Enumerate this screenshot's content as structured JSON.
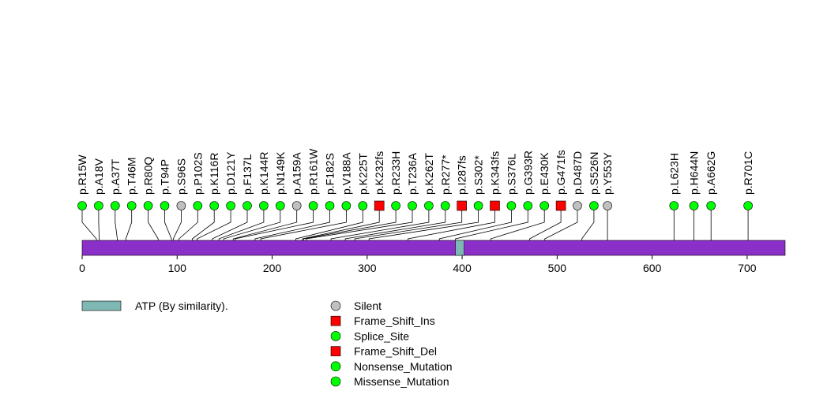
{
  "chart_data": {
    "type": "lollipop",
    "title": "",
    "protein_length": 740,
    "axis": {
      "min": 0,
      "max": 740,
      "ticks": [
        0,
        100,
        200,
        300,
        400,
        500,
        600,
        700
      ]
    },
    "domains": [
      {
        "label": "ATP (By similarity).",
        "start": 393,
        "end": 402,
        "color": "#7fb7b4"
      }
    ],
    "protein_color": "#8b2fc9",
    "categories": {
      "Silent": {
        "color": "#c0c0c0",
        "shape": "circle"
      },
      "Frame_Shift_Ins": {
        "color": "#ff0000",
        "shape": "square"
      },
      "Splice_Site": {
        "color": "#00ff00",
        "shape": "circle"
      },
      "Frame_Shift_Del": {
        "color": "#ff0000",
        "shape": "square"
      },
      "Nonsense_Mutation": {
        "color": "#00ff00",
        "shape": "circle"
      },
      "Missense_Mutation": {
        "color": "#00ff00",
        "shape": "circle"
      }
    },
    "legend": [
      "Silent",
      "Frame_Shift_Ins",
      "Splice_Site",
      "Frame_Shift_Del",
      "Nonsense_Mutation",
      "Missense_Mutation"
    ],
    "mutations": [
      {
        "label": "p.R15W",
        "position": 15,
        "category": "Missense_Mutation"
      },
      {
        "label": "p.A18V",
        "position": 18,
        "category": "Missense_Mutation"
      },
      {
        "label": "p.A37T",
        "position": 37,
        "category": "Missense_Mutation"
      },
      {
        "label": "p.T46M",
        "position": 46,
        "category": "Missense_Mutation"
      },
      {
        "label": "p.R80Q",
        "position": 80,
        "category": "Missense_Mutation"
      },
      {
        "label": "p.T94P",
        "position": 94,
        "category": "Missense_Mutation"
      },
      {
        "label": "p.S96S",
        "position": 96,
        "category": "Silent"
      },
      {
        "label": "p.P102S",
        "position": 102,
        "category": "Missense_Mutation"
      },
      {
        "label": "p.K116R",
        "position": 116,
        "category": "Missense_Mutation"
      },
      {
        "label": "p.D121Y",
        "position": 121,
        "category": "Missense_Mutation"
      },
      {
        "label": "p.F137L",
        "position": 137,
        "category": "Missense_Mutation"
      },
      {
        "label": "p.K144R",
        "position": 144,
        "category": "Missense_Mutation"
      },
      {
        "label": "p.N149K",
        "position": 149,
        "category": "Missense_Mutation"
      },
      {
        "label": "p.A159A",
        "position": 159,
        "category": "Silent"
      },
      {
        "label": "p.R161W",
        "position": 161,
        "category": "Missense_Mutation"
      },
      {
        "label": "p.F182S",
        "position": 182,
        "category": "Missense_Mutation"
      },
      {
        "label": "p.V188A",
        "position": 188,
        "category": "Missense_Mutation"
      },
      {
        "label": "p.K225T",
        "position": 225,
        "category": "Missense_Mutation"
      },
      {
        "label": "p.K232fs",
        "position": 232,
        "category": "Frame_Shift_Ins"
      },
      {
        "label": "p.R233H",
        "position": 233,
        "category": "Missense_Mutation"
      },
      {
        "label": "p.T236A",
        "position": 236,
        "category": "Missense_Mutation"
      },
      {
        "label": "p.K262T",
        "position": 262,
        "category": "Missense_Mutation"
      },
      {
        "label": "p.R277*",
        "position": 277,
        "category": "Nonsense_Mutation"
      },
      {
        "label": "p.I287fs",
        "position": 287,
        "category": "Frame_Shift_Del"
      },
      {
        "label": "p.S302*",
        "position": 302,
        "category": "Nonsense_Mutation"
      },
      {
        "label": "p.K343fs",
        "position": 343,
        "category": "Frame_Shift_Del"
      },
      {
        "label": "p.S376L",
        "position": 376,
        "category": "Missense_Mutation"
      },
      {
        "label": "p.G393R",
        "position": 393,
        "category": "Missense_Mutation"
      },
      {
        "label": "p.E430K",
        "position": 430,
        "category": "Missense_Mutation"
      },
      {
        "label": "p.G471fs",
        "position": 471,
        "category": "Frame_Shift_Del"
      },
      {
        "label": "p.D487D",
        "position": 487,
        "category": "Silent"
      },
      {
        "label": "p.S526N",
        "position": 526,
        "category": "Missense_Mutation"
      },
      {
        "label": "p.Y553Y",
        "position": 553,
        "category": "Silent"
      },
      {
        "label": "p.L623H",
        "position": 623,
        "category": "Missense_Mutation"
      },
      {
        "label": "p.H644N",
        "position": 644,
        "category": "Missense_Mutation"
      },
      {
        "label": "p.A662G",
        "position": 662,
        "category": "Missense_Mutation"
      },
      {
        "label": "p.R701C",
        "position": 701,
        "category": "Missense_Mutation"
      }
    ]
  }
}
